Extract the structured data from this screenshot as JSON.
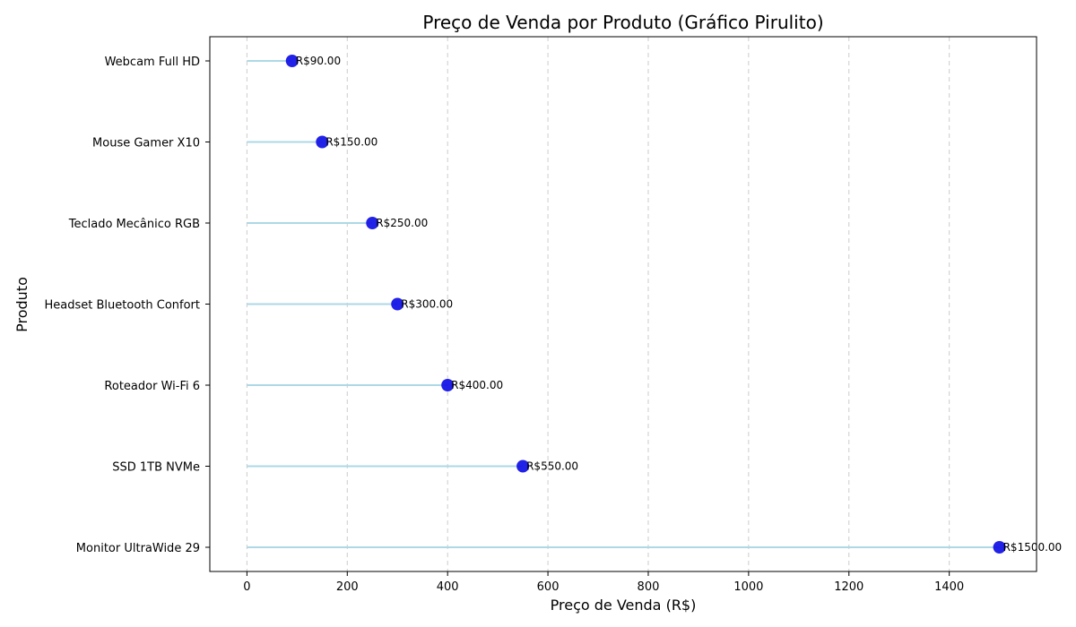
{
  "chart_data": {
    "type": "lollipop",
    "title": "Preço de Venda por Produto (Gráfico Pirulito)",
    "xlabel": "Preço de Venda (R$)",
    "ylabel": "Produto",
    "categories": [
      "Monitor UltraWide 29",
      "SSD 1TB NVMe",
      "Roteador Wi-Fi 6",
      "Headset Bluetooth Confort",
      "Teclado Mecânico RGB",
      "Mouse Gamer X10",
      "Webcam Full HD"
    ],
    "values": [
      1500,
      550,
      400,
      300,
      250,
      150,
      90
    ],
    "value_labels": [
      "R$1500.00",
      "R$550.00",
      "R$400.00",
      "R$300.00",
      "R$250.00",
      "R$150.00",
      "R$90.00"
    ],
    "xlim": [
      -74,
      1574
    ],
    "xticks": [
      "0",
      "200",
      "400",
      "600",
      "800",
      "1000",
      "1200",
      "1400"
    ],
    "grid": "x-dashed",
    "colors": {
      "stem": "#add8e6",
      "marker": "#1515e6",
      "grid": "#cccccc"
    }
  }
}
